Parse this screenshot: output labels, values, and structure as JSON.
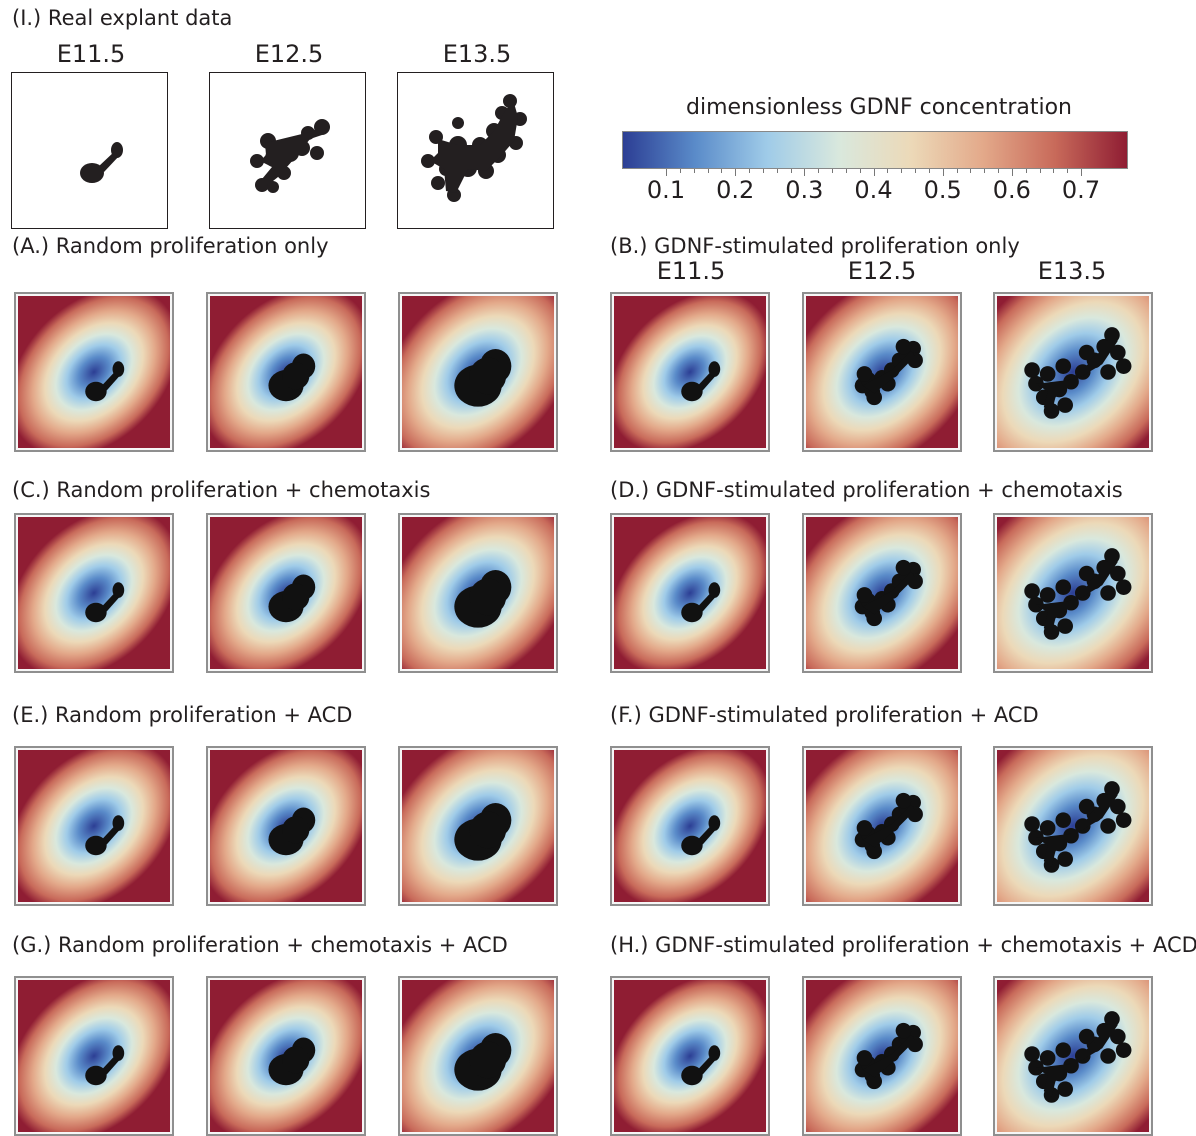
{
  "real_section_title": "(I.) Real explant data",
  "stage_labels": [
    "E11.5",
    "E12.5",
    "E13.5"
  ],
  "colorbar": {
    "title": "dimensionless GDNF concentration",
    "ticks": [
      "0.1",
      "0.2",
      "0.3",
      "0.4",
      "0.5",
      "0.6",
      "0.7"
    ],
    "colors": [
      "#2c3e94",
      "#5a8bc9",
      "#9fcbe8",
      "#d9e8dd",
      "#ecd9b8",
      "#e3a98a",
      "#c86a5a",
      "#8f1d33"
    ]
  },
  "panels": [
    {
      "key": "A",
      "title": "(A.) Random proliferation only"
    },
    {
      "key": "B",
      "title": "(B.) GDNF-stimulated proliferation only"
    },
    {
      "key": "C",
      "title": "(C.) Random proliferation + chemotaxis"
    },
    {
      "key": "D",
      "title": "(D.) GDNF-stimulated proliferation + chemotaxis"
    },
    {
      "key": "E",
      "title": "(E.) Random proliferation + ACD"
    },
    {
      "key": "F",
      "title": "(F.) GDNF-stimulated proliferation + ACD"
    },
    {
      "key": "G",
      "title": "(G.) Random proliferation + chemotaxis + ACD"
    },
    {
      "key": "H",
      "title": "(H.) GDNF-stimulated proliferation + chemotaxis + ACD"
    }
  ]
}
